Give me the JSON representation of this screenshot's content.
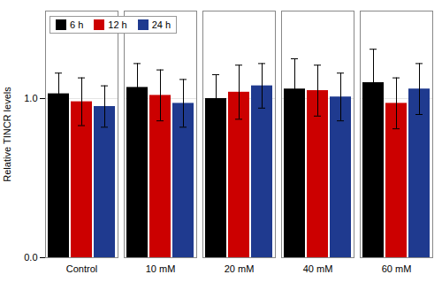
{
  "chart_data": {
    "type": "bar",
    "categories": [
      "Control",
      "10 mM",
      "20 mM",
      "40 mM",
      "60 mM"
    ],
    "series": [
      {
        "name": "6 h",
        "color": "#000000",
        "values": [
          1.03,
          1.07,
          1.0,
          1.06,
          1.1
        ],
        "errors": [
          0.13,
          0.15,
          0.15,
          0.19,
          0.21
        ]
      },
      {
        "name": "12 h",
        "color": "#cc0000",
        "values": [
          0.98,
          1.02,
          1.04,
          1.05,
          0.97
        ],
        "errors": [
          0.15,
          0.16,
          0.17,
          0.16,
          0.16
        ]
      },
      {
        "name": "24 h",
        "color": "#1f3a8f",
        "values": [
          0.95,
          0.97,
          1.08,
          1.01,
          1.06
        ],
        "errors": [
          0.13,
          0.15,
          0.14,
          0.15,
          0.16
        ]
      }
    ],
    "ylabel": "Relative TINCR levels",
    "ylim": [
      0,
      1.55
    ],
    "yticks": [
      0,
      1
    ],
    "grid": true,
    "legend": "upper left"
  }
}
